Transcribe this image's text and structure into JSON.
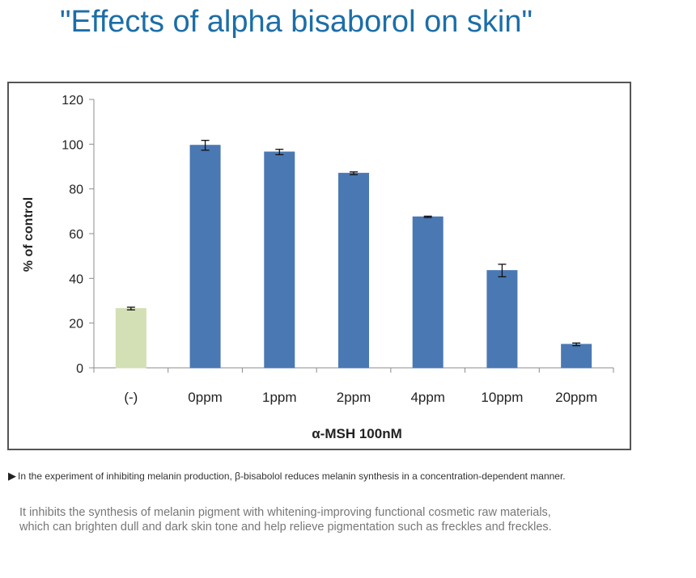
{
  "page": {
    "title": "\"Effects of alpha bisaborol on skin\"",
    "caption": "In the experiment of inhibiting melanin production, β-bisabolol reduces melanin synthesis in a concentration-dependent manner.",
    "caption_marker": "▶",
    "description_lines": [
      "It inhibits the synthesis of melanin pigment with whitening-improving functional cosmetic raw materials,",
      "which can brighten dull and dark skin tone and help relieve pigmentation such as freckles and freckles."
    ]
  },
  "chart_data": {
    "type": "bar",
    "title": "",
    "xlabel": "α-MSH 100nM",
    "ylabel": "% of control",
    "ylim": [
      0,
      120
    ],
    "yticks": [
      0,
      20,
      40,
      60,
      80,
      100,
      120
    ],
    "grid": false,
    "categories": [
      "(-)",
      "0ppm",
      "1ppm",
      "2ppm",
      "4ppm",
      "10ppm",
      "20ppm"
    ],
    "values": [
      26.5,
      99.5,
      96.5,
      87,
      67.5,
      43.5,
      10.5
    ],
    "errors": [
      0.6,
      2.2,
      1.2,
      0.6,
      0.3,
      2.8,
      0.6
    ],
    "colors": [
      "#d3dfb4",
      "#4a78b3",
      "#4a78b3",
      "#4a78b3",
      "#4a78b3",
      "#4a78b3",
      "#4a78b3"
    ]
  }
}
